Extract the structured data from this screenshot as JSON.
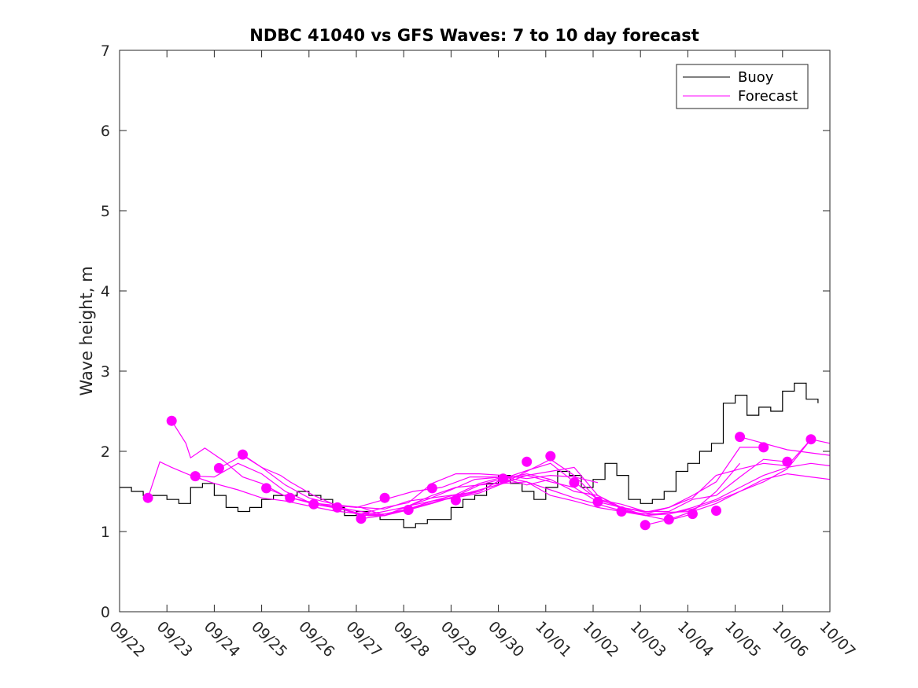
{
  "chart_data": {
    "type": "line",
    "title": "NDBC 41040 vs GFS Waves: 7 to 10 day forecast",
    "xlabel": "",
    "ylabel": "Wave height, m",
    "xlim": [
      0,
      15
    ],
    "ylim": [
      0,
      7
    ],
    "yticks": [
      0,
      1,
      2,
      3,
      4,
      5,
      6,
      7
    ],
    "xtick_labels": [
      "09/22",
      "09/23",
      "09/24",
      "09/25",
      "09/26",
      "09/27",
      "09/28",
      "09/29",
      "09/30",
      "10/01",
      "10/02",
      "10/03",
      "10/04",
      "10/05",
      "10/06",
      "10/07"
    ],
    "legend": {
      "position": "top-right",
      "entries": [
        "Buoy",
        "Forecast"
      ]
    },
    "colors": {
      "buoy": "#000000",
      "forecast": "#ff00ff",
      "axis": "#262626"
    },
    "series": [
      {
        "name": "Buoy",
        "x": [
          0.0,
          0.25,
          0.5,
          0.75,
          1.0,
          1.25,
          1.5,
          1.75,
          2.0,
          2.25,
          2.5,
          2.75,
          3.0,
          3.25,
          3.5,
          3.75,
          4.0,
          4.25,
          4.5,
          4.75,
          5.0,
          5.25,
          5.5,
          5.75,
          6.0,
          6.25,
          6.5,
          6.75,
          7.0,
          7.25,
          7.5,
          7.75,
          8.0,
          8.25,
          8.5,
          8.75,
          9.0,
          9.25,
          9.5,
          9.75,
          10.0,
          10.25,
          10.5,
          10.75,
          11.0,
          11.25,
          11.5,
          11.75,
          12.0,
          12.25,
          12.5,
          12.75,
          13.0,
          13.25,
          13.5,
          13.75,
          14.0,
          14.25,
          14.5,
          14.75
        ],
        "values": [
          1.55,
          1.5,
          1.45,
          1.45,
          1.4,
          1.35,
          1.55,
          1.6,
          1.45,
          1.3,
          1.25,
          1.3,
          1.4,
          1.45,
          1.45,
          1.5,
          1.45,
          1.4,
          1.3,
          1.2,
          1.25,
          1.2,
          1.15,
          1.15,
          1.05,
          1.1,
          1.15,
          1.15,
          1.3,
          1.4,
          1.45,
          1.6,
          1.7,
          1.6,
          1.5,
          1.4,
          1.55,
          1.75,
          1.7,
          1.55,
          1.65,
          1.85,
          1.7,
          1.4,
          1.35,
          1.4,
          1.5,
          1.75,
          1.85,
          2.0,
          2.1,
          2.6,
          2.7,
          2.45,
          2.55,
          2.5,
          2.75,
          2.85,
          2.65,
          2.6
        ]
      },
      {
        "name": "Forecast",
        "x": [
          0.6,
          0.85,
          1.1,
          1.5,
          2.0,
          2.5,
          3.0,
          3.5,
          4.0,
          4.5,
          5.1,
          5.5,
          6.0,
          6.5,
          7.0,
          7.5,
          8.1
        ],
        "values": [
          1.42,
          1.87,
          1.8,
          1.7,
          1.6,
          1.52,
          1.42,
          1.38,
          1.32,
          1.26,
          1.22,
          1.24,
          1.3,
          1.4,
          1.52,
          1.65,
          1.68
        ]
      },
      {
        "name": "Forecast",
        "x": [
          1.1,
          1.4,
          1.5,
          1.8,
          2.2,
          2.6,
          3.0,
          3.5,
          4.0,
          4.5,
          5.0,
          5.6,
          6.2,
          6.8,
          7.4,
          8.0,
          8.6,
          9.1
        ],
        "values": [
          2.38,
          2.1,
          1.92,
          2.04,
          1.88,
          1.68,
          1.6,
          1.44,
          1.36,
          1.33,
          1.3,
          1.4,
          1.5,
          1.55,
          1.68,
          1.68,
          1.58,
          1.65
        ]
      },
      {
        "name": "Forecast",
        "x": [
          1.6,
          2.0,
          2.5,
          3.0,
          3.5,
          4.1,
          4.6,
          5.1,
          5.6,
          6.1,
          6.6,
          7.1,
          7.6,
          8.1,
          8.6,
          9.1,
          9.6,
          10.1
        ],
        "values": [
          1.69,
          1.68,
          1.85,
          1.72,
          1.5,
          1.34,
          1.29,
          1.22,
          1.3,
          1.36,
          1.6,
          1.72,
          1.72,
          1.7,
          1.66,
          1.7,
          1.68,
          1.61
        ]
      },
      {
        "name": "Forecast",
        "x": [
          2.1,
          2.6,
          3.0,
          3.5,
          4.0,
          4.6,
          5.1,
          5.6,
          6.1,
          6.6,
          7.1,
          7.6,
          8.1,
          8.6,
          9.1,
          9.6,
          10.1,
          10.6,
          11.1
        ],
        "values": [
          1.79,
          1.95,
          1.8,
          1.58,
          1.42,
          1.33,
          1.3,
          1.2,
          1.32,
          1.45,
          1.55,
          1.58,
          1.6,
          1.75,
          1.9,
          1.7,
          1.4,
          1.34,
          1.25
        ]
      },
      {
        "name": "Forecast",
        "x": [
          2.6,
          3.0,
          3.4,
          3.6,
          4.1,
          4.6,
          5.1,
          5.6,
          6.1,
          6.6,
          7.1,
          7.6,
          8.1,
          8.6,
          9.1,
          9.6,
          10.1,
          10.6,
          11.1,
          11.6,
          12.1
        ],
        "values": [
          1.96,
          1.8,
          1.7,
          1.62,
          1.45,
          1.32,
          1.3,
          1.28,
          1.38,
          1.42,
          1.46,
          1.5,
          1.66,
          1.76,
          1.85,
          1.62,
          1.4,
          1.3,
          1.2,
          1.14,
          1.22
        ]
      },
      {
        "name": "Forecast",
        "x": [
          3.1,
          3.6,
          4.1,
          4.6,
          5.1,
          5.6,
          6.1,
          6.6,
          7.1,
          7.6,
          8.1,
          8.6,
          9.1,
          9.6,
          10.1,
          10.6,
          11.1,
          11.6,
          12.1,
          12.6,
          13.1
        ],
        "values": [
          1.54,
          1.42,
          1.36,
          1.3,
          1.22,
          1.2,
          1.32,
          1.38,
          1.42,
          1.48,
          1.6,
          1.7,
          1.75,
          1.8,
          1.45,
          1.28,
          1.2,
          1.24,
          1.25,
          1.5,
          1.85
        ]
      },
      {
        "name": "Forecast",
        "x": [
          3.6,
          4.1,
          4.6,
          5.1,
          5.6,
          6.1,
          6.6,
          7.1,
          7.6,
          8.1,
          8.6,
          9.1,
          9.6,
          10.1,
          10.6,
          11.1,
          11.6,
          12.1,
          12.6,
          13.1,
          13.6
        ],
        "values": [
          1.42,
          1.36,
          1.3,
          1.25,
          1.2,
          1.28,
          1.38,
          1.43,
          1.5,
          1.66,
          1.72,
          1.65,
          1.5,
          1.45,
          1.3,
          1.24,
          1.3,
          1.45,
          1.62,
          2.05,
          2.05
        ]
      },
      {
        "name": "Forecast",
        "x": [
          4.1,
          4.6,
          5.1,
          5.6,
          6.1,
          6.6,
          7.1,
          7.6,
          8.1,
          8.6,
          9.1,
          9.6,
          10.1,
          10.6,
          11.1,
          11.6,
          12.1,
          12.6,
          13.1,
          13.6,
          14.1
        ],
        "values": [
          1.34,
          1.3,
          1.2,
          1.2,
          1.27,
          1.35,
          1.44,
          1.58,
          1.66,
          1.7,
          1.62,
          1.55,
          1.37,
          1.3,
          1.25,
          1.25,
          1.4,
          1.45,
          1.68,
          1.9,
          1.87
        ]
      },
      {
        "name": "Forecast",
        "x": [
          4.6,
          5.1,
          5.6,
          6.1,
          6.6,
          7.1,
          7.6,
          8.1,
          8.6,
          9.1,
          9.6,
          10.1,
          10.6,
          11.1,
          11.6,
          12.1,
          12.6,
          13.1,
          13.6,
          14.1,
          14.6
        ],
        "values": [
          1.3,
          1.2,
          1.22,
          1.28,
          1.38,
          1.46,
          1.6,
          1.68,
          1.62,
          1.45,
          1.38,
          1.3,
          1.25,
          1.22,
          1.3,
          1.42,
          1.7,
          1.78,
          1.85,
          1.82,
          2.15
        ]
      },
      {
        "name": "Forecast",
        "x": [
          5.1,
          5.6,
          6.1,
          6.6,
          7.1,
          7.6,
          8.1,
          8.6,
          9.1,
          9.6,
          10.1,
          10.6,
          11.1,
          11.6,
          12.1,
          12.6,
          13.1,
          13.6,
          14.1,
          14.6,
          15.0
        ],
        "values": [
          1.16,
          1.2,
          1.28,
          1.36,
          1.44,
          1.52,
          1.6,
          1.62,
          1.52,
          1.42,
          1.34,
          1.26,
          1.22,
          1.22,
          1.28,
          1.38,
          1.5,
          1.62,
          1.78,
          2.15,
          2.1
        ]
      },
      {
        "name": "Forecast",
        "x": [
          10.6,
          11.1,
          11.6,
          12.1,
          12.6,
          13.1,
          13.6,
          14.1,
          14.6,
          15.0
        ],
        "values": [
          1.25,
          1.2,
          1.22,
          1.3,
          1.4,
          1.55,
          1.7,
          1.8,
          1.85,
          1.82
        ]
      },
      {
        "name": "Forecast",
        "x": [
          11.1,
          11.6,
          12.1,
          12.6,
          13.1,
          13.6,
          14.1,
          14.6,
          15.0
        ],
        "values": [
          1.08,
          1.15,
          1.25,
          1.35,
          1.5,
          1.65,
          1.72,
          1.68,
          1.65
        ]
      },
      {
        "name": "Forecast",
        "x": [
          13.1,
          13.6,
          14.1,
          14.6,
          15.0
        ],
        "values": [
          2.18,
          2.1,
          2.02,
          1.98,
          1.95
        ]
      }
    ],
    "markers": {
      "x": [
        0.6,
        1.1,
        1.6,
        2.1,
        2.6,
        3.1,
        3.6,
        4.1,
        4.6,
        5.1,
        5.6,
        6.1,
        6.6,
        7.1,
        8.1,
        8.6,
        9.1,
        9.6,
        10.1,
        10.6,
        11.1,
        11.6,
        12.1,
        12.6,
        13.1,
        13.6,
        14.1,
        14.6
      ],
      "values": [
        1.42,
        2.38,
        1.69,
        1.79,
        1.96,
        1.54,
        1.42,
        1.34,
        1.3,
        1.16,
        1.42,
        1.27,
        1.54,
        1.39,
        1.66,
        1.87,
        1.94,
        1.61,
        1.37,
        1.25,
        1.08,
        1.15,
        1.22,
        1.26,
        2.18,
        2.05,
        1.87,
        2.15
      ]
    }
  }
}
